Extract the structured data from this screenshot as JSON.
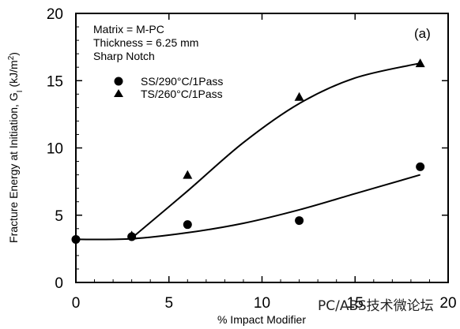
{
  "chart_data": {
    "type": "scatter",
    "panel_label": "(a)",
    "xlabel": "% Impact Modifier",
    "ylabel": "Fracture Energy at Initiation, G",
    "ylabel_subscript": "I",
    "ylabel_unit": "(kJ/m",
    "ylabel_unit_sup": "2",
    "ylabel_unit_close": ")",
    "xlim": [
      0,
      20
    ],
    "ylim": [
      0,
      20
    ],
    "xticks": [
      0,
      5,
      10,
      15,
      20
    ],
    "yticks": [
      0,
      5,
      10,
      15,
      20
    ],
    "annotations": [
      "Matrix = M-PC",
      "Thickness = 6.25 mm",
      "Sharp Notch"
    ],
    "series": [
      {
        "name": "SS/290°C/1Pass",
        "marker": "circle",
        "x": [
          0,
          3,
          6,
          12,
          18.5
        ],
        "y": [
          3.2,
          3.4,
          4.3,
          4.6,
          8.6
        ],
        "fit_curve": [
          [
            0,
            3.2
          ],
          [
            3,
            3.25
          ],
          [
            6,
            3.7
          ],
          [
            9,
            4.4
          ],
          [
            12,
            5.4
          ],
          [
            15,
            6.6
          ],
          [
            18.5,
            8.0
          ]
        ]
      },
      {
        "name": "TS/260°C/1Pass",
        "marker": "triangle",
        "x": [
          3,
          6,
          12,
          18.5
        ],
        "y": [
          3.5,
          8.0,
          13.8,
          16.3
        ],
        "fit_curve": [
          [
            3,
            3.3
          ],
          [
            6,
            6.8
          ],
          [
            9,
            10.4
          ],
          [
            12,
            13.3
          ],
          [
            15,
            15.2
          ],
          [
            18.5,
            16.3
          ]
        ]
      }
    ],
    "grid": false,
    "legend_position": "upper-left"
  },
  "watermark": "PC/ABS技术微论坛"
}
